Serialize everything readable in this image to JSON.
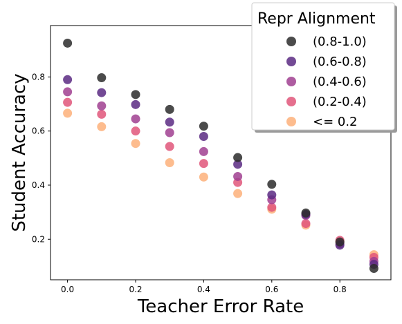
{
  "chart_data": {
    "type": "scatter",
    "title": "",
    "xlabel": "Teacher Error Rate",
    "ylabel": "Student Accuracy",
    "xlim": [
      -0.05,
      0.95
    ],
    "ylim": [
      0.05,
      0.99
    ],
    "xticks": [
      0.0,
      0.2,
      0.4,
      0.6,
      0.8
    ],
    "xtick_labels": [
      "0.0",
      "0.2",
      "0.4",
      "0.6",
      "0.8"
    ],
    "yticks": [
      0.2,
      0.4,
      0.6,
      0.8
    ],
    "ytick_labels": [
      "0.2",
      "0.4",
      "0.6",
      "0.8"
    ],
    "grid": false,
    "legend": {
      "title": "Repr Alignment",
      "placement": "top-right"
    },
    "series": [
      {
        "name": "(0.8-1.0)",
        "color": "#2b2b2b",
        "x": [
          0.0,
          0.1,
          0.2,
          0.3,
          0.4,
          0.5,
          0.6,
          0.7,
          0.8,
          0.9
        ],
        "y": [
          0.925,
          0.797,
          0.735,
          0.68,
          0.618,
          0.502,
          0.403,
          0.297,
          0.19,
          0.092
        ]
      },
      {
        "name": "(0.6-0.8)",
        "color": "#5a2a82",
        "x": [
          0.0,
          0.1,
          0.2,
          0.3,
          0.4,
          0.5,
          0.6,
          0.7,
          0.8,
          0.9
        ],
        "y": [
          0.79,
          0.742,
          0.698,
          0.633,
          0.58,
          0.477,
          0.364,
          0.292,
          0.178,
          0.107
        ]
      },
      {
        "name": "(0.4-0.6)",
        "color": "#a04090",
        "x": [
          0.0,
          0.1,
          0.2,
          0.3,
          0.4,
          0.5,
          0.6,
          0.7,
          0.8,
          0.9
        ],
        "y": [
          0.745,
          0.693,
          0.645,
          0.594,
          0.524,
          0.432,
          0.346,
          0.288,
          0.183,
          0.118
        ]
      },
      {
        "name": "(0.2-0.4)",
        "color": "#e0567a",
        "x": [
          0.0,
          0.1,
          0.2,
          0.3,
          0.4,
          0.5,
          0.6,
          0.7,
          0.8,
          0.9
        ],
        "y": [
          0.706,
          0.662,
          0.6,
          0.543,
          0.48,
          0.41,
          0.318,
          0.258,
          0.196,
          0.133
        ]
      },
      {
        "name": "<= 0.2",
        "color": "#fdb07a",
        "x": [
          0.0,
          0.1,
          0.2,
          0.3,
          0.4,
          0.5,
          0.6,
          0.7,
          0.8,
          0.9
        ],
        "y": [
          0.666,
          0.616,
          0.554,
          0.483,
          0.43,
          0.369,
          0.311,
          0.252,
          0.19,
          0.143
        ]
      }
    ]
  }
}
